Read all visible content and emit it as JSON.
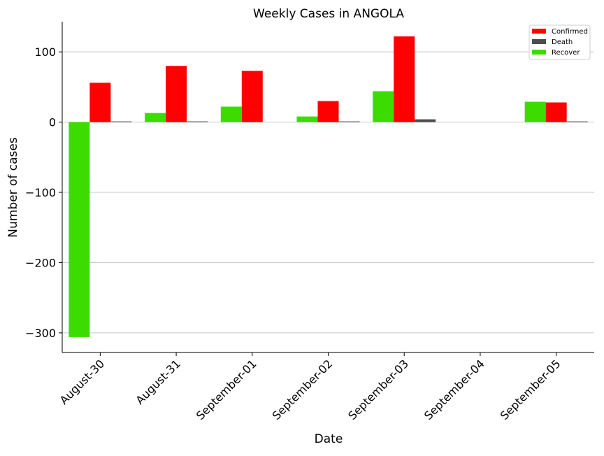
{
  "colors": {
    "Confirmed": "#ff0000",
    "Death": "#4d4d4d",
    "Recover": "#3ddc00",
    "grid": "#c8c8c8",
    "axis": "#000000"
  },
  "chart_data": {
    "type": "bar",
    "title": "Weekly Cases in ANGOLA",
    "xlabel": "Date",
    "ylabel": "Number of cases",
    "categories": [
      "August-30",
      "August-31",
      "September-01",
      "September-02",
      "September-03",
      "September-04",
      "September-05"
    ],
    "series": [
      {
        "name": "Recover",
        "values": [
          -306,
          13,
          22,
          8,
          44,
          0,
          29
        ]
      },
      {
        "name": "Confirmed",
        "values": [
          56,
          80,
          73,
          30,
          122,
          0,
          28
        ]
      },
      {
        "name": "Death",
        "values": [
          1,
          1,
          0,
          1,
          4,
          0,
          1
        ]
      }
    ],
    "legend": [
      "Confirmed",
      "Death",
      "Recover"
    ],
    "legend_position": "top-right",
    "ylim": [
      -328,
      143
    ],
    "yticks": [
      100,
      0,
      -100,
      -200,
      -300
    ],
    "ytick_labels": [
      "100",
      "0",
      "−100",
      "−200",
      "−300"
    ],
    "grid": "horizontal"
  }
}
